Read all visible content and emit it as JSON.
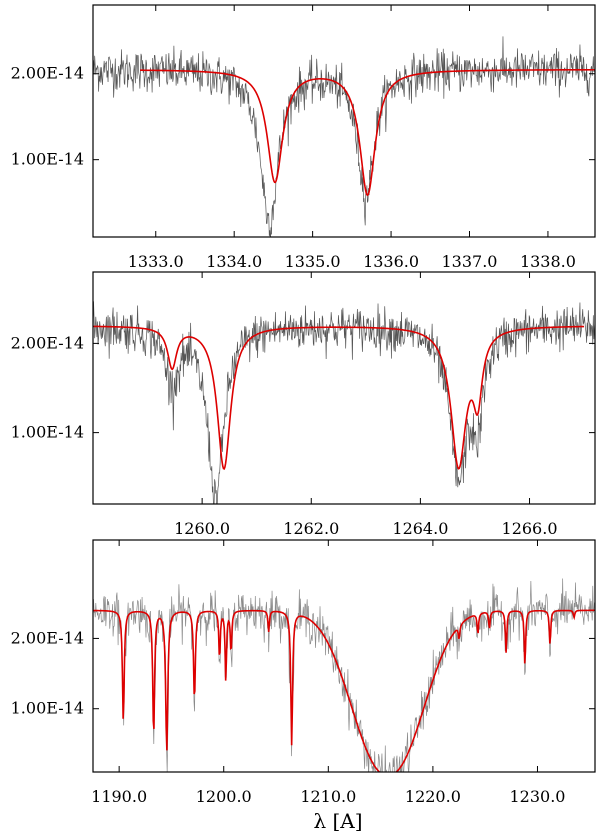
{
  "chart_data": [
    {
      "type": "line",
      "xlabel": "",
      "ylabel": "",
      "xlim": [
        1332.2,
        1338.6
      ],
      "ylim": [
        1e-15,
        2.8e-14
      ],
      "x_ticks": [
        1333.0,
        1334.0,
        1335.0,
        1336.0,
        1337.0,
        1338.0
      ],
      "x_tick_labels": [
        "1333.0",
        "1334.0",
        "1335.0",
        "1336.0",
        "1337.0",
        "1338.0"
      ],
      "y_ticks": [
        1e-14,
        2e-14
      ],
      "y_tick_labels": [
        "1.00E-14",
        "2.00E-14"
      ],
      "series": [
        {
          "role": "observed",
          "color": "#555555",
          "noise": 2.2e-15,
          "x_range": [
            1332.2,
            1338.6
          ],
          "lines": [
            {
              "center": 1334.45,
              "depth": 1.75e-14,
              "width": 0.14
            },
            {
              "center": 1335.68,
              "depth": 1.45e-14,
              "width": 0.13
            }
          ],
          "continuum": 2.05e-14
        },
        {
          "role": "model",
          "color": "#dd0000",
          "x_range": [
            1332.8,
            1338.6
          ],
          "lines": [
            {
              "center": 1334.52,
              "depth": 1.3e-14,
              "width": 0.12
            },
            {
              "center": 1335.7,
              "depth": 1.45e-14,
              "width": 0.12
            }
          ],
          "continuum": 2.05e-14
        }
      ]
    },
    {
      "type": "line",
      "xlabel": "",
      "ylabel": "",
      "xlim": [
        1258.0,
        1267.2
      ],
      "ylim": [
        2e-15,
        2.8e-14
      ],
      "x_ticks": [
        1260.0,
        1262.0,
        1264.0,
        1266.0
      ],
      "x_tick_labels": [
        "1260.0",
        "1262.0",
        "1264.0",
        "1266.0"
      ],
      "y_ticks": [
        1e-14,
        2e-14
      ],
      "y_tick_labels": [
        "1.00E-14",
        "2.00E-14"
      ],
      "series": [
        {
          "role": "observed",
          "color": "#555555",
          "noise": 2.2e-15,
          "x_range": [
            1258.0,
            1267.2
          ],
          "lines": [
            {
              "center": 1259.45,
              "depth": 6e-15,
              "width": 0.15
            },
            {
              "center": 1260.25,
              "depth": 1.9e-14,
              "width": 0.18
            },
            {
              "center": 1264.7,
              "depth": 1.65e-14,
              "width": 0.2
            },
            {
              "center": 1265.05,
              "depth": 9e-15,
              "width": 0.12
            }
          ],
          "continuum": 2.2e-14
        },
        {
          "role": "model",
          "color": "#dd0000",
          "x_range": [
            1258.0,
            1267.0
          ],
          "lines": [
            {
              "center": 1259.45,
              "depth": 4.5e-15,
              "width": 0.1
            },
            {
              "center": 1260.4,
              "depth": 1.6e-14,
              "width": 0.15
            },
            {
              "center": 1264.7,
              "depth": 1.55e-14,
              "width": 0.17
            },
            {
              "center": 1265.05,
              "depth": 7e-15,
              "width": 0.1
            }
          ],
          "continuum": 2.2e-14
        }
      ]
    },
    {
      "type": "line",
      "xlabel": "λ [A]",
      "ylabel": "",
      "xlim": [
        1187.5,
        1235.5
      ],
      "ylim": [
        1e-15,
        3.4e-14
      ],
      "x_ticks": [
        1190.0,
        1200.0,
        1210.0,
        1220.0,
        1230.0
      ],
      "x_tick_labels": [
        "1190.0",
        "1200.0",
        "1210.0",
        "1220.0",
        "1230.0"
      ],
      "y_ticks": [
        1e-14,
        2e-14
      ],
      "y_tick_labels": [
        "1.00E-14",
        "2.00E-14"
      ],
      "series": [
        {
          "role": "observed",
          "color": "#8a8a8a",
          "noise": 2.8e-15,
          "x_range": [
            1187.5,
            1235.5
          ],
          "lymanAlpha": {
            "center": 1215.7,
            "depth": 2.35e-14,
            "width": 4.6
          },
          "lines": [
            {
              "center": 1190.4,
              "depth": 1.6e-14,
              "width": 0.12
            },
            {
              "center": 1193.3,
              "depth": 1.9e-14,
              "width": 0.12
            },
            {
              "center": 1194.5,
              "depth": 5e-15,
              "width": 0.1
            },
            {
              "center": 1194.6,
              "depth": 2e-14,
              "width": 0.1
            },
            {
              "center": 1197.2,
              "depth": 1.4e-14,
              "width": 0.1
            },
            {
              "center": 1199.6,
              "depth": 8e-15,
              "width": 0.1
            },
            {
              "center": 1200.2,
              "depth": 1e-14,
              "width": 0.1
            },
            {
              "center": 1200.7,
              "depth": 6e-15,
              "width": 0.1
            },
            {
              "center": 1204.3,
              "depth": 3.5e-15,
              "width": 0.1
            },
            {
              "center": 1206.5,
              "depth": 2e-14,
              "width": 0.12
            },
            {
              "center": 1222.5,
              "depth": 3e-15,
              "width": 0.1
            },
            {
              "center": 1224.3,
              "depth": 4e-15,
              "width": 0.1
            },
            {
              "center": 1225.4,
              "depth": 3e-15,
              "width": 0.1
            },
            {
              "center": 1227.0,
              "depth": 7e-15,
              "width": 0.1
            },
            {
              "center": 1228.8,
              "depth": 9e-15,
              "width": 0.1
            },
            {
              "center": 1231.2,
              "depth": 6e-15,
              "width": 0.1
            }
          ],
          "continuum": 2.4e-14
        },
        {
          "role": "model",
          "color": "#dd0000",
          "x_range": [
            1187.5,
            1235.5
          ],
          "lymanAlpha": {
            "center": 1215.7,
            "depth": 2.35e-14,
            "width": 4.6
          },
          "lines": [
            {
              "center": 1190.4,
              "depth": 1.6e-14,
              "width": 0.1
            },
            {
              "center": 1193.3,
              "depth": 1.8e-14,
              "width": 0.1
            },
            {
              "center": 1194.55,
              "depth": 2e-14,
              "width": 0.12
            },
            {
              "center": 1197.2,
              "depth": 1.3e-14,
              "width": 0.1
            },
            {
              "center": 1199.6,
              "depth": 7e-15,
              "width": 0.08
            },
            {
              "center": 1200.2,
              "depth": 1e-14,
              "width": 0.08
            },
            {
              "center": 1200.7,
              "depth": 6e-15,
              "width": 0.08
            },
            {
              "center": 1204.3,
              "depth": 3e-15,
              "width": 0.08
            },
            {
              "center": 1206.5,
              "depth": 1.9e-14,
              "width": 0.1
            },
            {
              "center": 1222.5,
              "depth": 2e-15,
              "width": 0.08
            },
            {
              "center": 1224.3,
              "depth": 3e-15,
              "width": 0.08
            },
            {
              "center": 1225.4,
              "depth": 2.5e-15,
              "width": 0.08
            },
            {
              "center": 1227.0,
              "depth": 6e-15,
              "width": 0.08
            },
            {
              "center": 1228.8,
              "depth": 8e-15,
              "width": 0.08
            },
            {
              "center": 1231.2,
              "depth": 5e-15,
              "width": 0.08
            },
            {
              "center": 1233.5,
              "depth": 1e-15,
              "width": 0.08
            }
          ],
          "continuum": 2.4e-14
        }
      ]
    }
  ],
  "colors": {
    "observed_dark": "#555555",
    "observed_light": "#8a8a8a",
    "model": "#dd0000"
  }
}
